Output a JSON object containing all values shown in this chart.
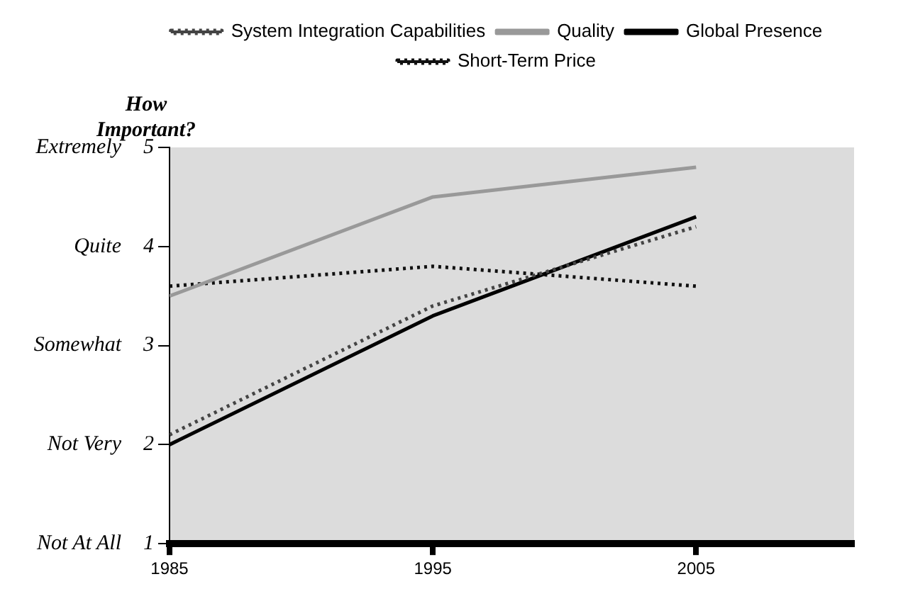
{
  "chart_data": {
    "type": "line",
    "ylabel": "How Important?",
    "x": [
      1985,
      1995,
      2005
    ],
    "xlim": [
      1985,
      2011
    ],
    "xticks": [
      1985,
      1995,
      2005
    ],
    "ylim": [
      1,
      5
    ],
    "yticks": [
      1,
      2,
      3,
      4,
      5
    ],
    "annotations": [
      "Not At All",
      "Not Very",
      "Somewhat",
      "Quite",
      "Extremely"
    ],
    "grid": false,
    "legend": "top",
    "marker": "none",
    "series": [
      {
        "name": "System Integration Capabilities",
        "color": "#444444",
        "line_style": "dotted",
        "values": [
          2.1,
          3.4,
          4.2
        ]
      },
      {
        "name": "Quality",
        "color": "#999999",
        "line_style": "solid",
        "values": [
          3.5,
          4.5,
          4.8
        ]
      },
      {
        "name": "Global Presence",
        "color": "#000000",
        "line_style": "solid",
        "values": [
          2.0,
          3.3,
          4.3
        ]
      },
      {
        "name": "Short-Term Price",
        "color": "#111111",
        "line_style": "dotted",
        "values": [
          3.6,
          3.8,
          3.6
        ]
      }
    ]
  }
}
